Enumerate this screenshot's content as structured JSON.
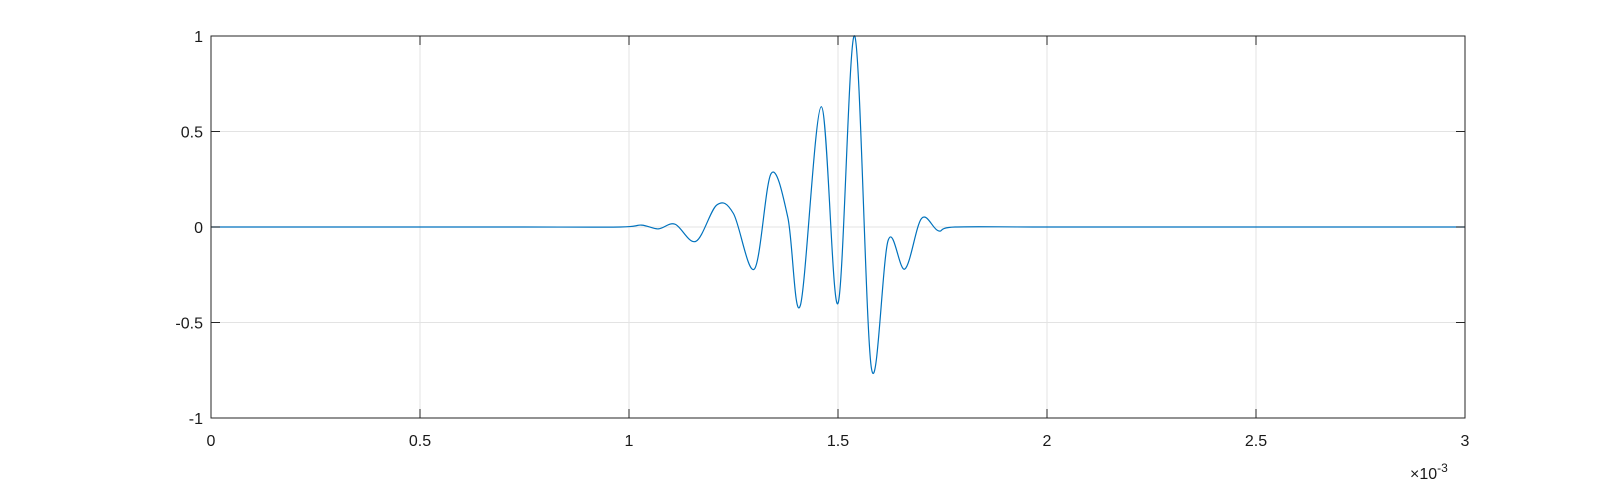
{
  "chart_data": {
    "type": "line",
    "title": "",
    "xlabel": "",
    "ylabel": "",
    "xlim": [
      0,
      0.003
    ],
    "ylim": [
      -1,
      1
    ],
    "grid": true,
    "legend": "none",
    "x_ticks": [
      0,
      0.0005,
      0.001,
      0.0015,
      0.002,
      0.0025,
      0.003
    ],
    "x_tick_labels": [
      "0",
      "0.5",
      "1",
      "1.5",
      "2",
      "2.5",
      "3"
    ],
    "x_exponent_label": {
      "base": "×10",
      "power": "-3"
    },
    "y_ticks": [
      1,
      0.5,
      0,
      -0.5,
      -1
    ],
    "y_tick_labels": [
      "1",
      "0.5",
      "0",
      "-0.5",
      "-1"
    ],
    "series": [
      {
        "color": "#0072bd",
        "points": [
          [
            0.0,
            0.0
          ],
          [
            0.00025,
            0.0
          ],
          [
            0.0005,
            0.0
          ],
          [
            0.00075,
            0.0
          ],
          [
            0.00098,
            0.0
          ],
          [
            0.00103,
            0.01
          ],
          [
            0.00107,
            -0.01
          ],
          [
            0.00111,
            0.015
          ],
          [
            0.00116,
            -0.075
          ],
          [
            0.00121,
            0.115
          ],
          [
            0.00125,
            0.07
          ],
          [
            0.0013,
            -0.22
          ],
          [
            0.00134,
            0.28
          ],
          [
            0.00138,
            0.05
          ],
          [
            0.00141,
            -0.41
          ],
          [
            0.00146,
            0.63
          ],
          [
            0.0015,
            -0.4
          ],
          [
            0.00154,
            1.0
          ],
          [
            0.00158,
            -0.74
          ],
          [
            0.00162,
            -0.07
          ],
          [
            0.00166,
            -0.22
          ],
          [
            0.0017,
            0.045
          ],
          [
            0.00174,
            -0.02
          ],
          [
            0.00178,
            0.0
          ],
          [
            0.002,
            0.0
          ],
          [
            0.0025,
            0.0
          ],
          [
            0.003,
            0.0
          ]
        ]
      }
    ]
  }
}
